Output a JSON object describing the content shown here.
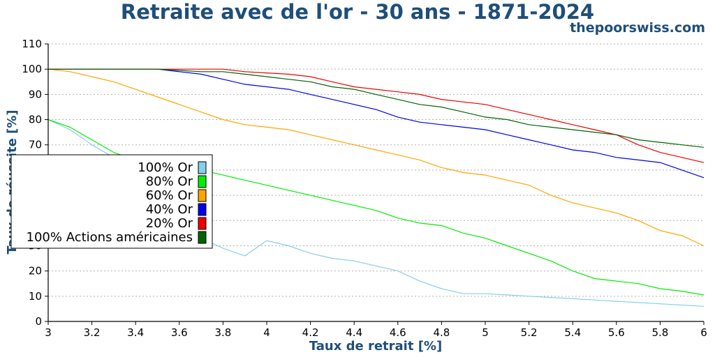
{
  "header": {
    "title": "Retraite avec de l'or - 30 ans - 1871-2024",
    "site": "thepoorswiss.com"
  },
  "chart_data": {
    "type": "line",
    "title": "Retraite avec de l'or - 30 ans - 1871-2024",
    "xlabel": "Taux de retrait [%]",
    "ylabel": "Taux de réussite [%]",
    "xlim": [
      3,
      6
    ],
    "ylim": [
      0,
      110
    ],
    "xticks": [
      3,
      3.2,
      3.4,
      3.6,
      3.8,
      4,
      4.2,
      4.4,
      4.6,
      4.8,
      5,
      5.2,
      5.4,
      5.6,
      5.8,
      6
    ],
    "xtick_labels": [
      "3",
      "3.2",
      "3.4",
      "3.6",
      "3.8",
      "4",
      "4.2",
      "4.4",
      "4.6",
      "4.8",
      "5",
      "5.2",
      "5.4",
      "5.6",
      "5.8",
      "6"
    ],
    "yticks": [
      0,
      10,
      20,
      30,
      40,
      50,
      60,
      70,
      80,
      90,
      100,
      110
    ],
    "ytick_labels": [
      "0",
      "10",
      "20",
      "30",
      "40",
      "50",
      "60",
      "70",
      "80",
      "90",
      "100",
      "110"
    ],
    "grid": "horizontal dotted",
    "legend_position": "center-left",
    "x": [
      3.0,
      3.1,
      3.2,
      3.3,
      3.4,
      3.5,
      3.6,
      3.7,
      3.8,
      3.9,
      4.0,
      4.1,
      4.2,
      4.3,
      4.4,
      4.5,
      4.6,
      4.7,
      4.8,
      4.9,
      5.0,
      5.1,
      5.2,
      5.3,
      5.4,
      5.5,
      5.6,
      5.7,
      5.8,
      5.9,
      6.0
    ],
    "series": [
      {
        "name": "100% Or",
        "color": "#87ceeb",
        "values": [
          80,
          76,
          70,
          65,
          60,
          53,
          45,
          33,
          29,
          26,
          32,
          30,
          27,
          25,
          24,
          22,
          20,
          16,
          13,
          11,
          11,
          10.5,
          10,
          9.5,
          9,
          8.5,
          8,
          7.5,
          7,
          6.5,
          6
        ]
      },
      {
        "name": "80% Or",
        "color": "#00ee00",
        "values": [
          80,
          77,
          72,
          67,
          64,
          62,
          61,
          60,
          58,
          56,
          54,
          52,
          50,
          48,
          46,
          44,
          41,
          39,
          38,
          35,
          33,
          30,
          27,
          24,
          20,
          17,
          16,
          15,
          13,
          12,
          10.5
        ]
      },
      {
        "name": "60% Or",
        "color": "#ffa500",
        "values": [
          100,
          99,
          97,
          95,
          92,
          89,
          86,
          83,
          80,
          78,
          77,
          76,
          74,
          72,
          70,
          68,
          66,
          64,
          61,
          59,
          58,
          56,
          54,
          50,
          47,
          45,
          43,
          40,
          36,
          34,
          30
        ]
      },
      {
        "name": "40% Or",
        "color": "#0000ee",
        "values": [
          100,
          100,
          100,
          100,
          100,
          100,
          99,
          98,
          96,
          94,
          93,
          92,
          90,
          88,
          86,
          84,
          81,
          79,
          78,
          77,
          76,
          74,
          72,
          70,
          68,
          67,
          65,
          64,
          63,
          60,
          57
        ]
      },
      {
        "name": "20% Or",
        "color": "#ee0000",
        "values": [
          100,
          100,
          100,
          100,
          100,
          100,
          100,
          100,
          100,
          99,
          98.5,
          98,
          97,
          95,
          93,
          92,
          91,
          90,
          88,
          87,
          86,
          84,
          82,
          80,
          78,
          76,
          74,
          70,
          67,
          65,
          63
        ]
      },
      {
        "name": "100% Actions américaines",
        "color": "#006400",
        "values": [
          100,
          100,
          100,
          100,
          100,
          100,
          99.5,
          99,
          99,
          98,
          97,
          96,
          95,
          93,
          92,
          90,
          88,
          86,
          85,
          83,
          81,
          80,
          78,
          77,
          76,
          75,
          74,
          72,
          71,
          70,
          69
        ]
      }
    ]
  }
}
